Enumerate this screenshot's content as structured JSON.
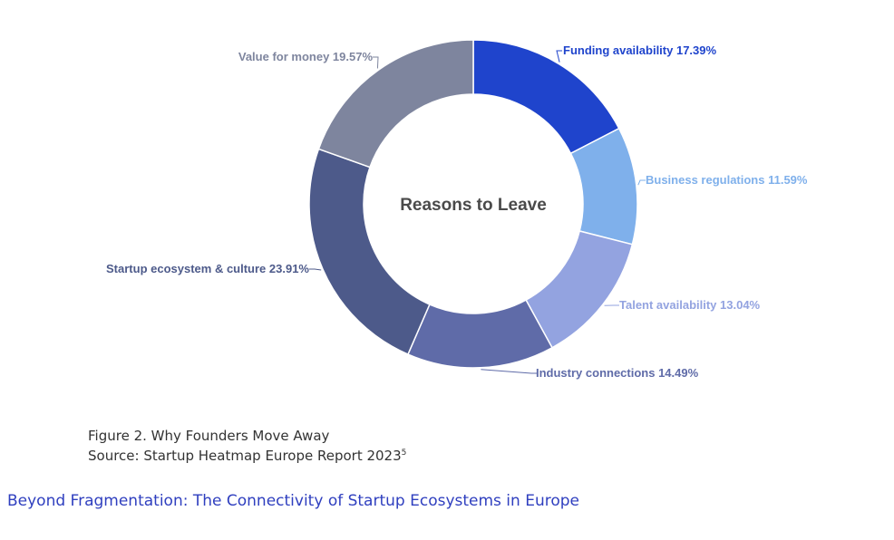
{
  "chart_data": {
    "type": "pie",
    "donut": true,
    "center_title": "Reasons to Leave",
    "slices": [
      {
        "label": "Funding availability",
        "value": 17.39,
        "display": "Funding availability 17.39%",
        "color": "#1f44cc"
      },
      {
        "label": "Business regulations",
        "value": 11.59,
        "display": "Business regulations 11.59%",
        "color": "#7fb0eb"
      },
      {
        "label": "Talent availability",
        "value": 13.04,
        "display": "Talent availability 13.04%",
        "color": "#93a3e0"
      },
      {
        "label": "Industry connections",
        "value": 14.49,
        "display": "Industry connections 14.49%",
        "color": "#5f6ba8"
      },
      {
        "label": "Startup ecosystem & culture",
        "value": 23.91,
        "display": "Startup ecosystem & culture 23.91%",
        "color": "#4d5a8a"
      },
      {
        "label": "Value for money",
        "value": 19.57,
        "display": "Value for money 19.57%",
        "color": "#7e859e"
      }
    ]
  },
  "caption": {
    "figure": "Figure 2. Why Founders Move Away",
    "source": "Source: Startup Heatmap Europe Report 2023",
    "source_note": "5"
  },
  "footer": {
    "title": "Beyond Fragmentation: The Connectivity of Startup Ecosystems in Europe"
  },
  "colors": {
    "footer_title": "#2f3fbf",
    "caption_text": "#333333"
  }
}
